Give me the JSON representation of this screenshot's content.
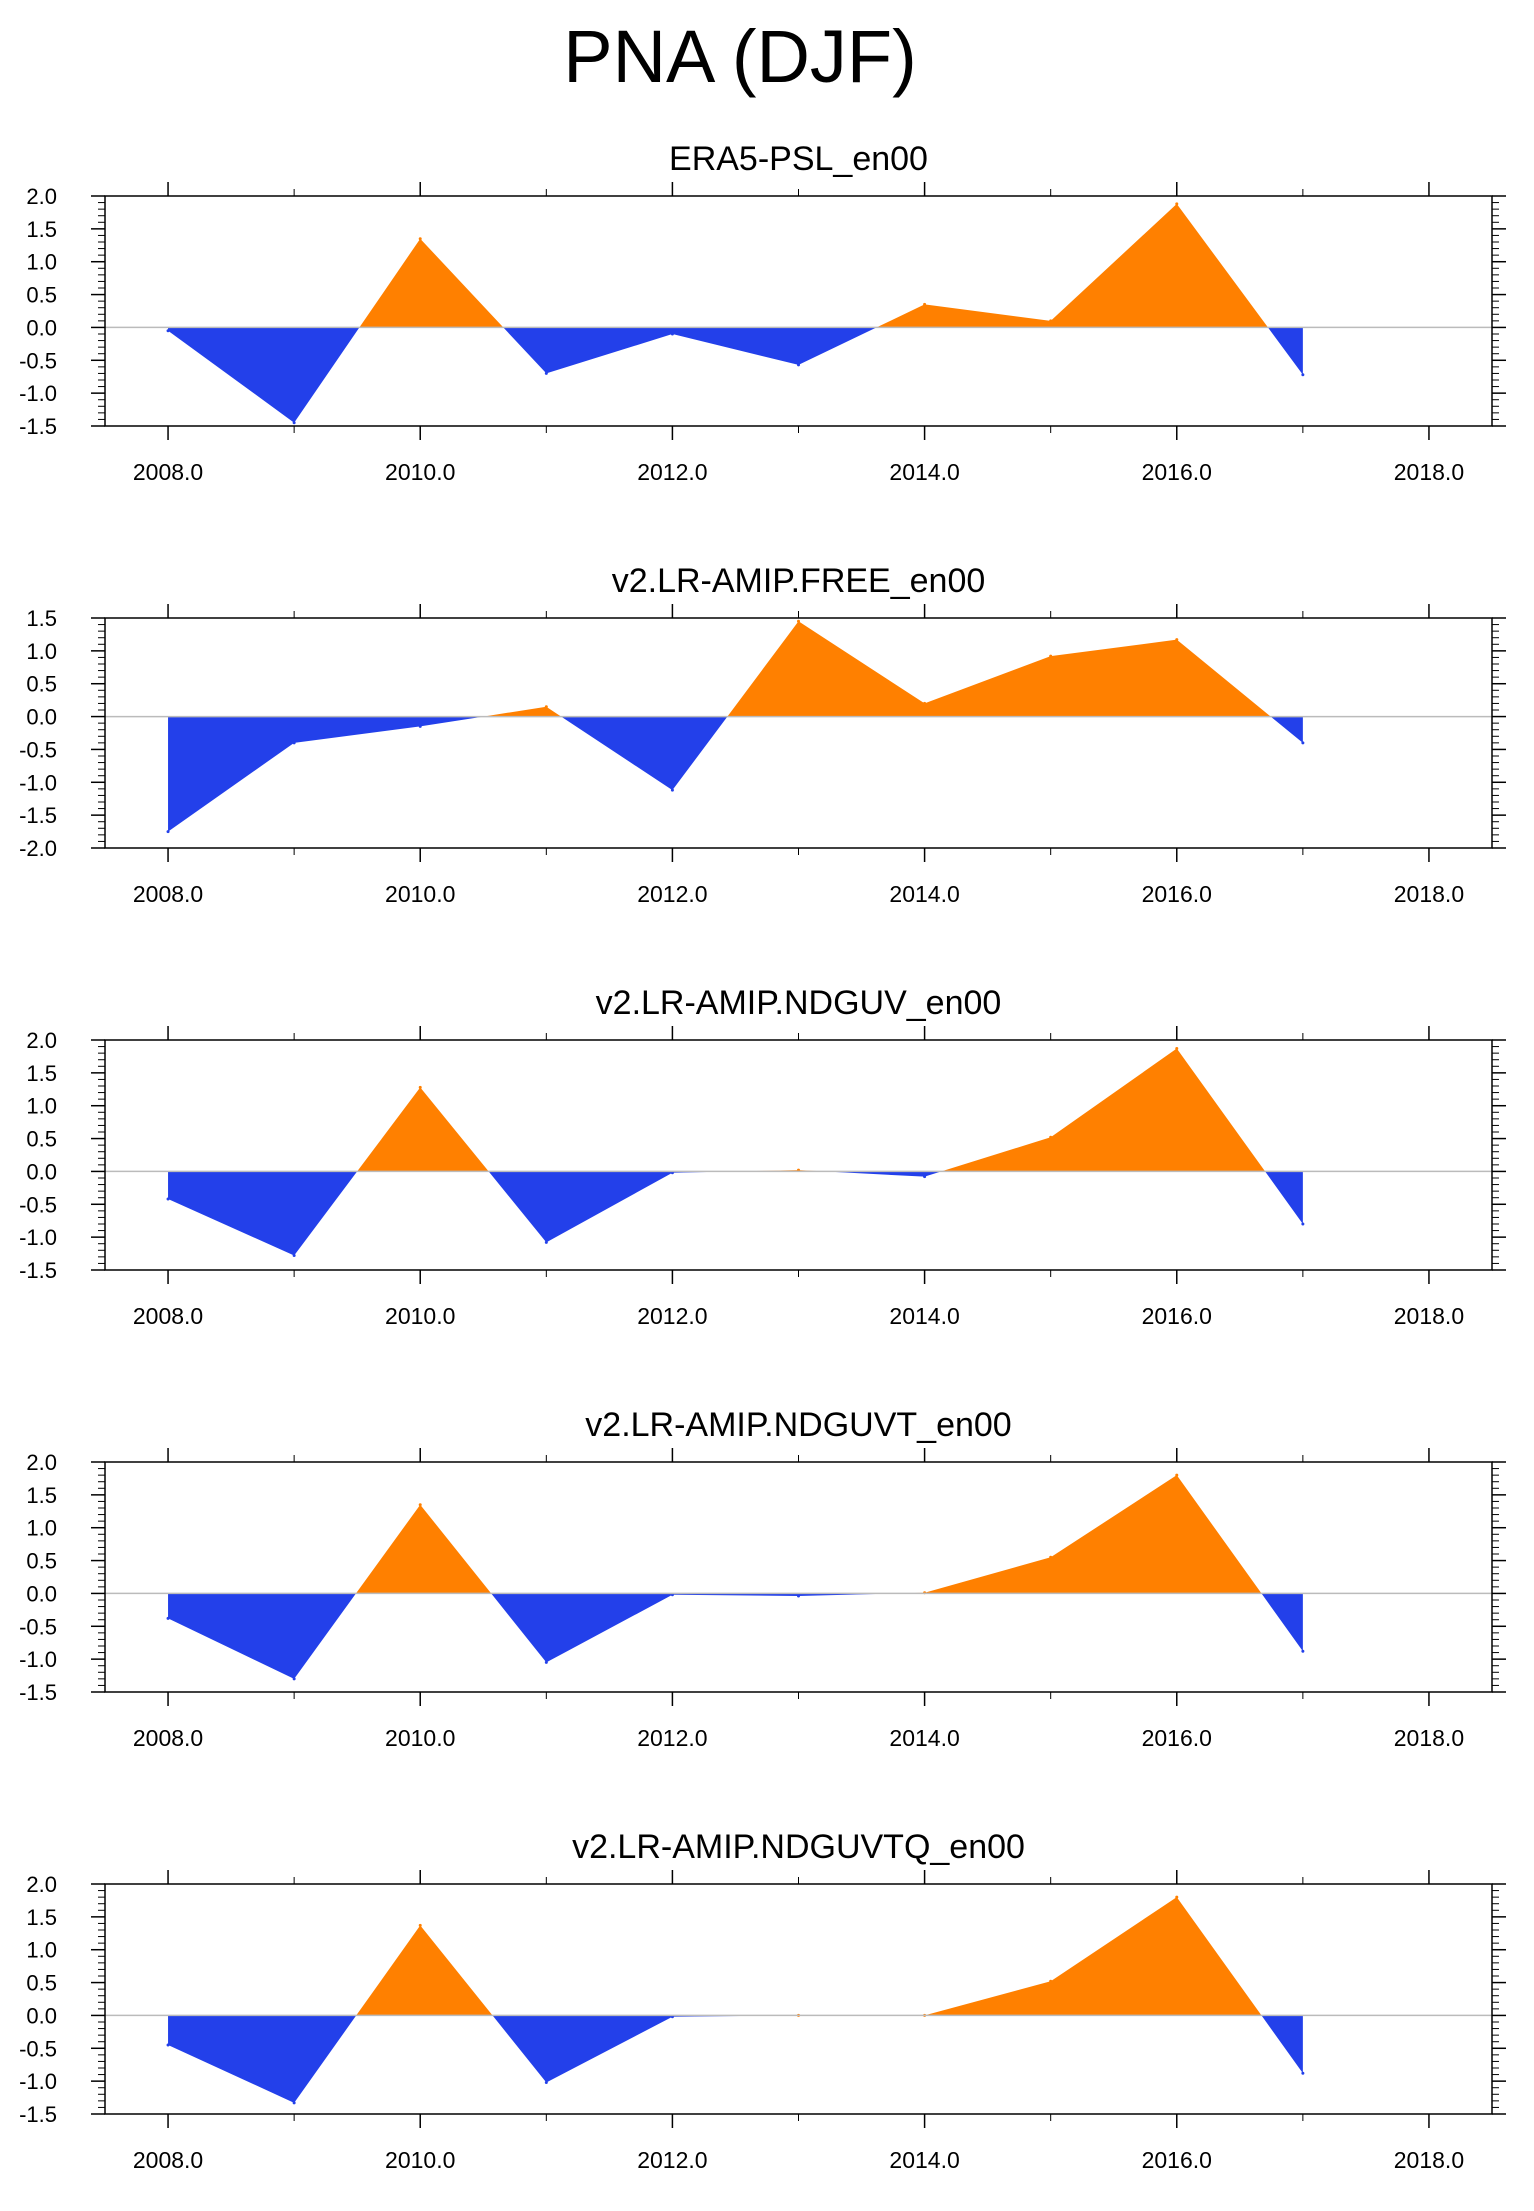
{
  "title": "PNA (DJF)",
  "colors": {
    "positive": "#ff8000",
    "negative": "#2340ea",
    "axis": "#000000",
    "zero_line": "#bbbbbb"
  },
  "chart_data": [
    {
      "type": "area",
      "title": "ERA5-PSL_en00",
      "x": [
        2008,
        2009,
        2010,
        2011,
        2012,
        2013,
        2014,
        2015,
        2016,
        2017
      ],
      "values": [
        -0.05,
        -1.45,
        1.35,
        -0.7,
        -0.1,
        -0.57,
        0.35,
        0.1,
        1.88,
        -0.72
      ],
      "xlim": [
        2007.5,
        2018.5
      ],
      "ylim": [
        -1.5,
        2.0
      ],
      "xticks": [
        2008,
        2010,
        2012,
        2014,
        2016,
        2018
      ],
      "xtick_labels": [
        "2008.0",
        "2010.0",
        "2012.0",
        "2014.0",
        "2016.0",
        "2018.0"
      ],
      "yticks": [
        -1.5,
        -1.0,
        -0.5,
        0.0,
        0.5,
        1.0,
        1.5,
        2.0
      ],
      "ytick_labels": [
        "-1.5",
        "-1.0",
        "-0.5",
        "0.0",
        "0.5",
        "1.0",
        "1.5",
        "2.0"
      ]
    },
    {
      "type": "area",
      "title": "v2.LR-AMIP.FREE_en00",
      "x": [
        2008,
        2009,
        2010,
        2011,
        2012,
        2013,
        2014,
        2015,
        2016,
        2017
      ],
      "values": [
        -1.75,
        -0.4,
        -0.15,
        0.15,
        -1.12,
        1.45,
        0.2,
        0.92,
        1.17,
        -0.4
      ],
      "xlim": [
        2007.5,
        2018.5
      ],
      "ylim": [
        -2.0,
        1.5
      ],
      "xticks": [
        2008,
        2010,
        2012,
        2014,
        2016,
        2018
      ],
      "xtick_labels": [
        "2008.0",
        "2010.0",
        "2012.0",
        "2014.0",
        "2016.0",
        "2018.0"
      ],
      "yticks": [
        -2.0,
        -1.5,
        -1.0,
        -0.5,
        0.0,
        0.5,
        1.0,
        1.5
      ],
      "ytick_labels": [
        "-2.0",
        "-1.5",
        "-1.0",
        "-0.5",
        "0.0",
        "0.5",
        "1.0",
        "1.5"
      ]
    },
    {
      "type": "area",
      "title": "v2.LR-AMIP.NDGUV_en00",
      "x": [
        2008,
        2009,
        2010,
        2011,
        2012,
        2013,
        2014,
        2015,
        2016,
        2017
      ],
      "values": [
        -0.42,
        -1.28,
        1.28,
        -1.08,
        -0.02,
        0.02,
        -0.08,
        0.52,
        1.87,
        -0.8
      ],
      "xlim": [
        2007.5,
        2018.5
      ],
      "ylim": [
        -1.5,
        2.0
      ],
      "xticks": [
        2008,
        2010,
        2012,
        2014,
        2016,
        2018
      ],
      "xtick_labels": [
        "2008.0",
        "2010.0",
        "2012.0",
        "2014.0",
        "2016.0",
        "2018.0"
      ],
      "yticks": [
        -1.5,
        -1.0,
        -0.5,
        0.0,
        0.5,
        1.0,
        1.5,
        2.0
      ],
      "ytick_labels": [
        "-1.5",
        "-1.0",
        "-0.5",
        "0.0",
        "0.5",
        "1.0",
        "1.5",
        "2.0"
      ]
    },
    {
      "type": "area",
      "title": "v2.LR-AMIP.NDGUVT_en00",
      "x": [
        2008,
        2009,
        2010,
        2011,
        2012,
        2013,
        2014,
        2015,
        2016,
        2017
      ],
      "values": [
        -0.38,
        -1.3,
        1.35,
        -1.05,
        -0.02,
        -0.04,
        0.01,
        0.55,
        1.8,
        -0.88
      ],
      "xlim": [
        2007.5,
        2018.5
      ],
      "ylim": [
        -1.5,
        2.0
      ],
      "xticks": [
        2008,
        2010,
        2012,
        2014,
        2016,
        2018
      ],
      "xtick_labels": [
        "2008.0",
        "2010.0",
        "2012.0",
        "2014.0",
        "2016.0",
        "2018.0"
      ],
      "yticks": [
        -1.5,
        -1.0,
        -0.5,
        0.0,
        0.5,
        1.0,
        1.5,
        2.0
      ],
      "ytick_labels": [
        "-1.5",
        "-1.0",
        "-0.5",
        "0.0",
        "0.5",
        "1.0",
        "1.5",
        "2.0"
      ]
    },
    {
      "type": "area",
      "title": "v2.LR-AMIP.NDGUVTQ_en00",
      "x": [
        2008,
        2009,
        2010,
        2011,
        2012,
        2013,
        2014,
        2015,
        2016,
        2017
      ],
      "values": [
        -0.45,
        -1.33,
        1.37,
        -1.02,
        -0.02,
        0.0,
        0.0,
        0.52,
        1.8,
        -0.88
      ],
      "xlim": [
        2007.5,
        2018.5
      ],
      "ylim": [
        -1.5,
        2.0
      ],
      "xticks": [
        2008,
        2010,
        2012,
        2014,
        2016,
        2018
      ],
      "xtick_labels": [
        "2008.0",
        "2010.0",
        "2012.0",
        "2014.0",
        "2016.0",
        "2018.0"
      ],
      "yticks": [
        -1.5,
        -1.0,
        -0.5,
        0.0,
        0.5,
        1.0,
        1.5,
        2.0
      ],
      "ytick_labels": [
        "-1.5",
        "-1.0",
        "-0.5",
        "0.0",
        "0.5",
        "1.0",
        "1.5",
        "2.0"
      ]
    }
  ]
}
